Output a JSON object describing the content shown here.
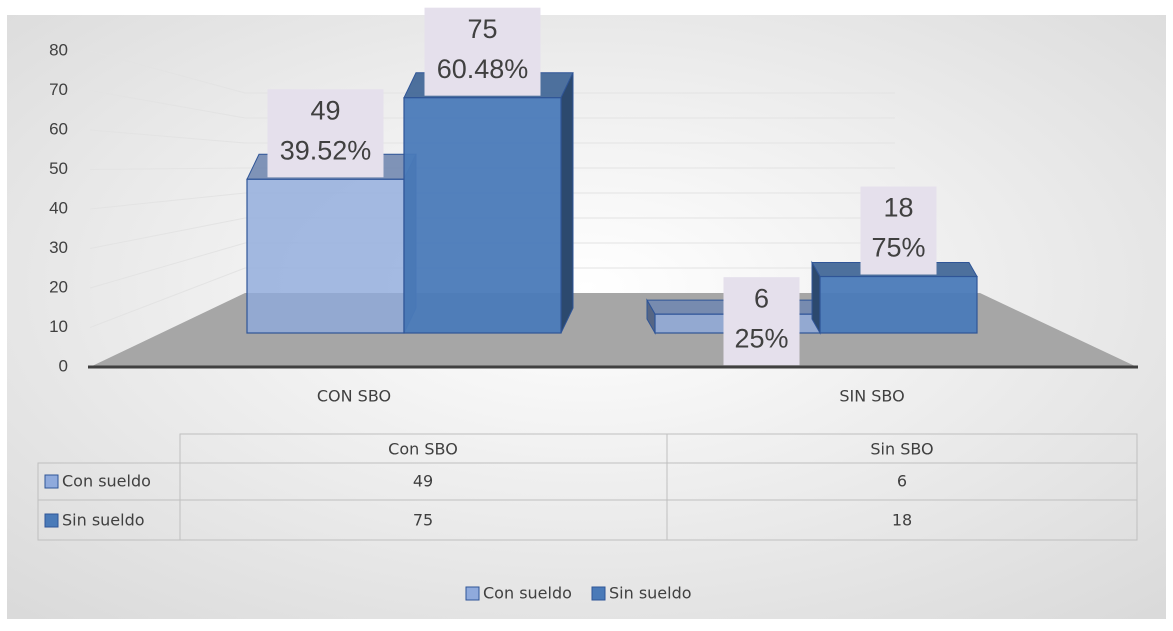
{
  "chart_data": {
    "type": "bar",
    "categories": [
      "CON SBO",
      "SIN SBO"
    ],
    "series": [
      {
        "name": "Con sueldo",
        "color": "#8faadc",
        "values": [
          49,
          6
        ],
        "percent_labels": [
          "39.52%",
          "25%"
        ]
      },
      {
        "name": "Sin sueldo",
        "color": "#4a7ab8",
        "values": [
          75,
          18
        ],
        "percent_labels": [
          "60.48%",
          "75%"
        ]
      }
    ],
    "ylim": [
      0,
      80
    ],
    "yticks": [
      0,
      10,
      20,
      30,
      40,
      50,
      60,
      70,
      80
    ],
    "grid": true,
    "legend": "bottom",
    "table": {
      "columns": [
        "Con SBO",
        "Sin SBO"
      ]
    }
  }
}
